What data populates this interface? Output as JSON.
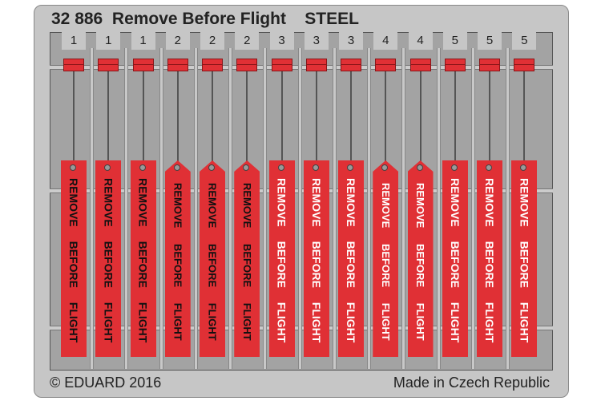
{
  "title": "32 886  Remove Before Flight    STEEL",
  "footer_left": "© EDUARD 2016",
  "footer_right": "Made in Czech Republic",
  "colors": {
    "tag": "#e03035",
    "fret": "#c6c6c6",
    "panel": "#a3a3a3"
  },
  "tags": [
    {
      "number": "1",
      "text": "REMOVE BEFORE FLIGHT",
      "shape": "square",
      "text_color": "#111"
    },
    {
      "number": "1",
      "text": "REMOVE BEFORE FLIGHT",
      "shape": "square",
      "text_color": "#111"
    },
    {
      "number": "1",
      "text": "REMOVE BEFORE FLIGHT",
      "shape": "square",
      "text_color": "#111"
    },
    {
      "number": "2",
      "text": "REMOVE BEFORE FLIGHT",
      "shape": "pointed",
      "text_color": "#111"
    },
    {
      "number": "2",
      "text": "REMOVE BEFORE FLIGHT",
      "shape": "pointed",
      "text_color": "#111"
    },
    {
      "number": "2",
      "text": "REMOVE BEFORE FLIGHT",
      "shape": "pointed",
      "text_color": "#111"
    },
    {
      "number": "3",
      "text": "REMOVE BEFORE FLIGHT",
      "shape": "square",
      "text_color": "#fff"
    },
    {
      "number": "3",
      "text": "REMOVE BEFORE FLIGHT",
      "shape": "square",
      "text_color": "#fff"
    },
    {
      "number": "3",
      "text": "REMOVE BEFORE FLIGHT",
      "shape": "square",
      "text_color": "#fff"
    },
    {
      "number": "4",
      "text": "REMOVE BEFORE FLIGHT",
      "shape": "pointed",
      "text_color": "#fff"
    },
    {
      "number": "4",
      "text": "REMOVE BEFORE FLIGHT",
      "shape": "pointed",
      "text_color": "#fff"
    },
    {
      "number": "5",
      "text": "REMOVE BEFORE FLIGHT",
      "shape": "square",
      "text_color": "#fff"
    },
    {
      "number": "5",
      "text": "REMOVE BEFORE FLIGHT",
      "shape": "square",
      "text_color": "#fff"
    },
    {
      "number": "5",
      "text": "REMOVE BEFORE FLIGHT",
      "shape": "square",
      "text_color": "#fff"
    }
  ]
}
